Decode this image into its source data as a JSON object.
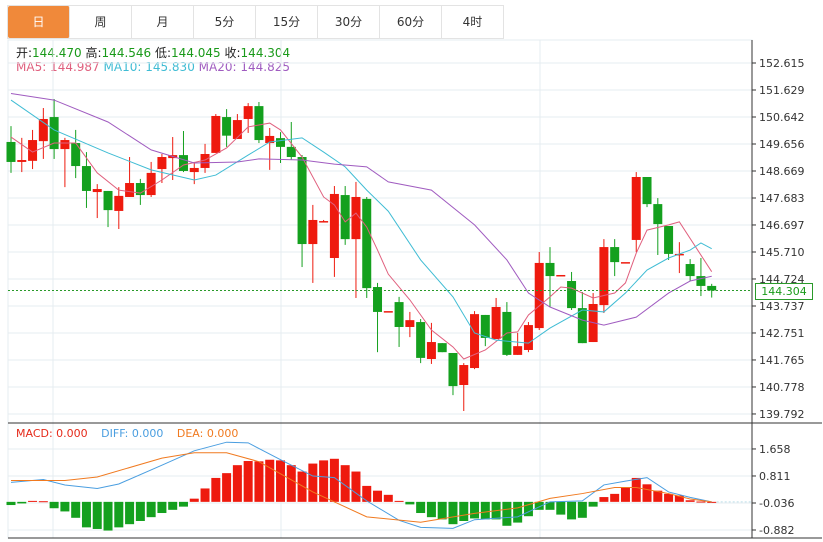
{
  "tabs": [
    {
      "label": "日",
      "active": true
    },
    {
      "label": "周",
      "active": false
    },
    {
      "label": "月",
      "active": false
    },
    {
      "label": "5分",
      "active": false
    },
    {
      "label": "15分",
      "active": false
    },
    {
      "label": "30分",
      "active": false
    },
    {
      "label": "60分",
      "active": false
    },
    {
      "label": "4时",
      "active": false
    }
  ],
  "ohlc_legend": {
    "open_label": "开:",
    "open": "144.470",
    "high_label": "高:",
    "high": "144.546",
    "low_label": "低:",
    "low": "144.045",
    "close_label": "收:",
    "close": "144.304"
  },
  "ma_legend": {
    "ma5": "MA5: 144.987",
    "ma10": "MA10: 145.830",
    "ma20": "MA20: 144.825"
  },
  "macd_legend": {
    "macd": "MACD: 0.000",
    "diff": "DIFF: 0.000",
    "dea": "DEA: 0.000"
  },
  "current_price": "144.304",
  "colors": {
    "up": "#ee1a0e",
    "down": "#14a01e",
    "ma5": "#e0607e",
    "ma10": "#3fbcd4",
    "ma20": "#a05cc0",
    "diff": "#4a9ee0",
    "dea": "#f07a20",
    "accent": "#f0893a"
  },
  "chart_data": [
    {
      "type": "candlestick",
      "title": "",
      "ylim": [
        139.5,
        153.0
      ],
      "y_ticks": [
        "152.615",
        "151.629",
        "150.642",
        "149.656",
        "148.669",
        "147.683",
        "146.697",
        "145.710",
        "144.724",
        "143.737",
        "142.751",
        "141.765",
        "140.778",
        "139.792"
      ],
      "y_tick_values": [
        152.615,
        151.629,
        150.642,
        149.656,
        148.669,
        147.683,
        146.697,
        145.71,
        144.724,
        143.737,
        142.751,
        141.765,
        140.778,
        139.792
      ],
      "candles": [
        [
          149.73,
          150.31,
          148.6,
          149.0
        ],
        [
          149.0,
          149.88,
          148.63,
          149.07
        ],
        [
          149.04,
          150.17,
          148.74,
          149.8
        ],
        [
          149.76,
          150.97,
          149.11,
          150.57
        ],
        [
          150.64,
          151.3,
          149.11,
          149.47
        ],
        [
          149.47,
          149.88,
          148.08,
          149.8
        ],
        [
          149.69,
          150.17,
          148.41,
          148.85
        ],
        [
          148.85,
          149.36,
          147.32,
          147.94
        ],
        [
          147.9,
          148.19,
          146.95,
          148.01
        ],
        [
          147.94,
          147.94,
          146.62,
          147.24
        ],
        [
          147.21,
          148.08,
          146.55,
          147.76
        ],
        [
          147.72,
          149.18,
          147.72,
          148.23
        ],
        [
          148.23,
          148.38,
          147.43,
          147.79
        ],
        [
          147.79,
          149.0,
          147.72,
          148.6
        ],
        [
          148.74,
          149.29,
          148.23,
          149.18
        ],
        [
          149.14,
          149.91,
          148.34,
          149.25
        ],
        [
          149.25,
          150.13,
          148.63,
          148.67
        ],
        [
          148.63,
          149.0,
          148.19,
          148.78
        ],
        [
          148.78,
          149.66,
          148.6,
          149.29
        ],
        [
          149.33,
          150.75,
          149.33,
          150.68
        ],
        [
          150.64,
          150.93,
          149.55,
          149.96
        ],
        [
          149.84,
          150.75,
          149.84,
          150.53
        ],
        [
          150.57,
          151.15,
          150.06,
          151.04
        ],
        [
          151.04,
          151.19,
          149.69,
          149.8
        ],
        [
          149.69,
          150.24,
          148.71,
          149.95
        ],
        [
          149.87,
          150.09,
          148.96,
          149.55
        ],
        [
          149.55,
          150.46,
          149.07,
          149.18
        ],
        [
          149.18,
          149.25,
          145.16,
          146.0
        ],
        [
          146.0,
          147.43,
          144.58,
          146.88
        ],
        [
          146.84,
          146.88,
          146.81,
          146.84
        ],
        [
          145.49,
          148.12,
          144.8,
          147.83
        ],
        [
          147.79,
          148.12,
          145.97,
          146.18
        ],
        [
          146.18,
          148.27,
          144.03,
          147.72
        ],
        [
          147.65,
          147.72,
          144.03,
          144.39
        ],
        [
          144.43,
          144.58,
          142.05,
          143.52
        ],
        [
          143.55,
          143.55,
          143.55,
          143.55
        ],
        [
          143.88,
          144.07,
          142.24,
          142.97
        ],
        [
          142.97,
          143.52,
          142.6,
          143.22
        ],
        [
          143.15,
          143.26,
          141.65,
          141.84
        ],
        [
          141.8,
          143.12,
          141.62,
          142.42
        ],
        [
          142.38,
          142.38,
          142.05,
          142.05
        ],
        [
          142.02,
          142.02,
          140.48,
          140.81
        ],
        [
          140.85,
          141.65,
          139.9,
          141.58
        ],
        [
          141.47,
          143.55,
          141.43,
          143.44
        ],
        [
          143.41,
          143.41,
          142.27,
          142.57
        ],
        [
          142.53,
          144.03,
          142.53,
          143.7
        ],
        [
          143.52,
          143.88,
          141.91,
          141.95
        ],
        [
          141.95,
          142.75,
          141.95,
          142.27
        ],
        [
          142.13,
          143.15,
          142.05,
          143.04
        ],
        [
          142.93,
          145.71,
          142.86,
          145.31
        ],
        [
          145.31,
          145.89,
          143.7,
          144.83
        ],
        [
          144.87,
          144.87,
          144.87,
          144.87
        ],
        [
          144.65,
          144.98,
          143.59,
          143.66
        ],
        [
          143.66,
          144.25,
          142.38,
          142.38
        ],
        [
          142.42,
          144.21,
          142.42,
          143.81
        ],
        [
          143.77,
          146.18,
          143.48,
          145.89
        ],
        [
          145.89,
          146.18,
          144.83,
          145.34
        ],
        [
          145.34,
          145.34,
          145.34,
          145.34
        ],
        [
          146.15,
          148.63,
          145.71,
          148.45
        ],
        [
          148.45,
          148.45,
          147.35,
          147.46
        ],
        [
          147.46,
          147.68,
          145.6,
          146.73
        ],
        [
          146.66,
          146.66,
          145.42,
          145.64
        ],
        [
          145.64,
          146.07,
          144.94,
          145.64
        ],
        [
          145.27,
          145.45,
          144.65,
          144.83
        ],
        [
          144.83,
          145.49,
          144.1,
          144.47
        ],
        [
          144.47,
          144.546,
          144.045,
          144.304
        ]
      ],
      "candle_fields": [
        "open",
        "high",
        "low",
        "close"
      ],
      "series": [
        {
          "name": "MA5",
          "points": [
            [
              0,
              149.91
            ],
            [
              2,
              149.36
            ],
            [
              4,
              149.69
            ],
            [
              6,
              149.69
            ],
            [
              8,
              148.6
            ],
            [
              10,
              147.97
            ],
            [
              12,
              147.86
            ],
            [
              14,
              148.34
            ],
            [
              16,
              148.89
            ],
            [
              18,
              149.07
            ],
            [
              20,
              149.51
            ],
            [
              22,
              150.28
            ],
            [
              24,
              150.42
            ],
            [
              25,
              150.17
            ],
            [
              27,
              149.18
            ],
            [
              29,
              147.72
            ],
            [
              30,
              147.43
            ],
            [
              31,
              146.81
            ],
            [
              32,
              147.13
            ],
            [
              33,
              146.62
            ],
            [
              34,
              145.78
            ],
            [
              35,
              144.9
            ],
            [
              37,
              143.96
            ],
            [
              39,
              142.86
            ],
            [
              41,
              142.24
            ],
            [
              42,
              141.8
            ],
            [
              44,
              142.13
            ],
            [
              46,
              142.75
            ],
            [
              47,
              142.79
            ],
            [
              48,
              143.41
            ],
            [
              50,
              144.07
            ],
            [
              51,
              144.43
            ],
            [
              52,
              144.39
            ],
            [
              54,
              144.03
            ],
            [
              56,
              144.21
            ],
            [
              57,
              144.58
            ],
            [
              58,
              145.67
            ],
            [
              59,
              146.51
            ],
            [
              61,
              146.7
            ],
            [
              62,
              146.81
            ],
            [
              65,
              144.99
            ]
          ]
        },
        {
          "name": "MA10",
          "points": [
            [
              0,
              151.26
            ],
            [
              4,
              150.17
            ],
            [
              9,
              149.33
            ],
            [
              13,
              148.71
            ],
            [
              17,
              148.34
            ],
            [
              19,
              148.52
            ],
            [
              22,
              149.25
            ],
            [
              24,
              149.73
            ],
            [
              27,
              149.88
            ],
            [
              29,
              149.36
            ],
            [
              31,
              148.82
            ],
            [
              33,
              147.97
            ],
            [
              35,
              147.2
            ],
            [
              38,
              145.42
            ],
            [
              41,
              144.07
            ],
            [
              43,
              142.75
            ],
            [
              45,
              142.49
            ],
            [
              48,
              142.38
            ],
            [
              50,
              142.93
            ],
            [
              53,
              143.59
            ],
            [
              55,
              143.52
            ],
            [
              57,
              144.21
            ],
            [
              59,
              145.05
            ],
            [
              61,
              145.49
            ],
            [
              63,
              145.78
            ],
            [
              64,
              146.04
            ],
            [
              65,
              145.83
            ]
          ]
        },
        {
          "name": "MA20",
          "points": [
            [
              0,
              151.5
            ],
            [
              4,
              151.26
            ],
            [
              9,
              150.46
            ],
            [
              13,
              149.44
            ],
            [
              17,
              148.96
            ],
            [
              21,
              149.0
            ],
            [
              23,
              149.11
            ],
            [
              27,
              149.07
            ],
            [
              30,
              148.92
            ],
            [
              33,
              148.82
            ],
            [
              35,
              148.27
            ],
            [
              39,
              147.97
            ],
            [
              43,
              146.7
            ],
            [
              46,
              145.42
            ],
            [
              48,
              144.21
            ],
            [
              50,
              143.7
            ],
            [
              53,
              143.22
            ],
            [
              55,
              143.04
            ],
            [
              58,
              143.33
            ],
            [
              61,
              144.21
            ],
            [
              63,
              144.65
            ],
            [
              65,
              144.825
            ]
          ]
        }
      ]
    },
    {
      "type": "bar+line",
      "title": "MACD",
      "ylim": [
        -1.05,
        2.1
      ],
      "y_ticks": [
        "1.658",
        "0.811",
        "-0.036",
        "-0.882"
      ],
      "y_tick_values": [
        1.658,
        0.811,
        -0.036,
        -0.882
      ],
      "histogram": [
        -0.1,
        -0.05,
        0.03,
        0.02,
        -0.2,
        -0.3,
        -0.5,
        -0.8,
        -0.85,
        -0.9,
        -0.8,
        -0.7,
        -0.6,
        -0.48,
        -0.35,
        -0.25,
        -0.15,
        0.1,
        0.42,
        0.75,
        0.9,
        1.15,
        1.28,
        1.27,
        1.32,
        1.3,
        1.15,
        0.95,
        1.2,
        1.3,
        1.35,
        1.15,
        0.95,
        0.5,
        0.35,
        0.22,
        0.03,
        -0.08,
        -0.35,
        -0.48,
        -0.55,
        -0.7,
        -0.6,
        -0.52,
        -0.55,
        -0.55,
        -0.75,
        -0.65,
        -0.45,
        -0.25,
        -0.25,
        -0.4,
        -0.55,
        -0.5,
        -0.15,
        0.15,
        0.25,
        0.45,
        0.75,
        0.55,
        0.35,
        0.25,
        0.2,
        0.05,
        0.01,
        0.0
      ],
      "series": [
        {
          "name": "DIFF",
          "points": [
            [
              0,
              0.61
            ],
            [
              3,
              0.7
            ],
            [
              5,
              0.53
            ],
            [
              8,
              0.42
            ],
            [
              10,
              0.56
            ],
            [
              14,
              1.15
            ],
            [
              17,
              1.6
            ],
            [
              20,
              1.87
            ],
            [
              22,
              1.85
            ],
            [
              25,
              1.32
            ],
            [
              28,
              0.81
            ],
            [
              30,
              0.76
            ],
            [
              33,
              0.03
            ],
            [
              36,
              -0.58
            ],
            [
              38,
              -0.8
            ],
            [
              41,
              -0.83
            ],
            [
              43,
              -0.56
            ],
            [
              47,
              -0.47
            ],
            [
              50,
              0.0
            ],
            [
              53,
              0.03
            ],
            [
              55,
              0.53
            ],
            [
              57,
              0.65
            ],
            [
              59,
              0.76
            ],
            [
              61,
              0.31
            ],
            [
              63,
              0.14
            ],
            [
              65,
              0.0
            ]
          ]
        },
        {
          "name": "DEA",
          "points": [
            [
              0,
              0.67
            ],
            [
              5,
              0.67
            ],
            [
              8,
              0.78
            ],
            [
              14,
              1.37
            ],
            [
              17,
              1.54
            ],
            [
              20,
              1.54
            ],
            [
              23,
              1.26
            ],
            [
              28,
              0.31
            ],
            [
              33,
              -0.47
            ],
            [
              38,
              -0.64
            ],
            [
              43,
              -0.36
            ],
            [
              47,
              -0.19
            ],
            [
              50,
              0.11
            ],
            [
              53,
              0.26
            ],
            [
              56,
              0.45
            ],
            [
              58,
              0.45
            ],
            [
              61,
              0.26
            ],
            [
              63,
              0.09
            ],
            [
              65,
              0.0
            ]
          ]
        }
      ]
    }
  ]
}
